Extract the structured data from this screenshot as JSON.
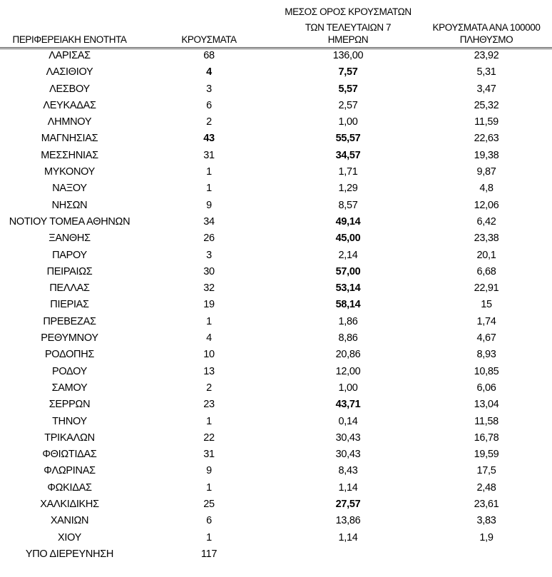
{
  "headers": {
    "region": "ΠΕΡΙΦΕΡΕΙΑΚΗ ΕΝΟΤΗΤΑ",
    "cases": "ΚΡΟΥΣΜΑΤΑ",
    "avg_line1": "ΜΕΣΟΣ ΟΡΟΣ ΚΡΟΥΣΜΑΤΩΝ",
    "avg_line2": "ΤΩΝ ΤΕΛΕΥΤΑΙΩΝ 7",
    "avg_line3": "ΗΜΕΡΩΝ",
    "per100k_line1": "ΚΡΟΥΣΜΑΤΑ ΑΝΑ 100000",
    "per100k_line2": "ΠΛΗΘΥΣΜΟ"
  },
  "rows": [
    {
      "region": "ΛΑΡΙΣΑΣ",
      "cases": "68",
      "avg7": "136,00",
      "per100k": "23,92"
    },
    {
      "region": "ΛΑΣΙΘΙΟΥ",
      "cases": "4",
      "avg7": "7,57",
      "per100k": "5,31"
    },
    {
      "region": "ΛΕΣΒΟΥ",
      "cases": "3",
      "avg7": "5,57",
      "per100k": "3,47"
    },
    {
      "region": "ΛΕΥΚΑΔΑΣ",
      "cases": "6",
      "avg7": "2,57",
      "per100k": "25,32"
    },
    {
      "region": "ΛΗΜΝΟΥ",
      "cases": "2",
      "avg7": "1,00",
      "per100k": "11,59"
    },
    {
      "region": "ΜΑΓΝΗΣΙΑΣ",
      "cases": "43",
      "avg7": "55,57",
      "per100k": "22,63"
    },
    {
      "region": "ΜΕΣΣΗΝΙΑΣ",
      "cases": "31",
      "avg7": "34,57",
      "per100k": "19,38"
    },
    {
      "region": "ΜΥΚΟΝΟΥ",
      "cases": "1",
      "avg7": "1,71",
      "per100k": "9,87"
    },
    {
      "region": "ΝΑΞΟΥ",
      "cases": "1",
      "avg7": "1,29",
      "per100k": "4,8"
    },
    {
      "region": "ΝΗΣΩΝ",
      "cases": "9",
      "avg7": "8,57",
      "per100k": "12,06"
    },
    {
      "region": "ΝΟΤΙΟΥ ΤΟΜΕΑ ΑΘΗΝΩΝ",
      "cases": "34",
      "avg7": "49,14",
      "per100k": "6,42"
    },
    {
      "region": "ΞΑΝΘΗΣ",
      "cases": "26",
      "avg7": "45,00",
      "per100k": "23,38"
    },
    {
      "region": "ΠΑΡΟΥ",
      "cases": "3",
      "avg7": "2,14",
      "per100k": "20,1"
    },
    {
      "region": "ΠΕΙΡΑΙΩΣ",
      "cases": "30",
      "avg7": "57,00",
      "per100k": "6,68"
    },
    {
      "region": "ΠΕΛΛΑΣ",
      "cases": "32",
      "avg7": "53,14",
      "per100k": "22,91"
    },
    {
      "region": "ΠΙΕΡΙΑΣ",
      "cases": "19",
      "avg7": "58,14",
      "per100k": "15"
    },
    {
      "region": "ΠΡΕΒΕΖΑΣ",
      "cases": "1",
      "avg7": "1,86",
      "per100k": "1,74"
    },
    {
      "region": "ΡΕΘΥΜΝΟΥ",
      "cases": "4",
      "avg7": "8,86",
      "per100k": "4,67"
    },
    {
      "region": "ΡΟΔΟΠΗΣ",
      "cases": "10",
      "avg7": "20,86",
      "per100k": "8,93"
    },
    {
      "region": "ΡΟΔΟΥ",
      "cases": "13",
      "avg7": "12,00",
      "per100k": "10,85"
    },
    {
      "region": "ΣΑΜΟΥ",
      "cases": "2",
      "avg7": "1,00",
      "per100k": "6,06"
    },
    {
      "region": "ΣΕΡΡΩΝ",
      "cases": "23",
      "avg7": "43,71",
      "per100k": "13,04"
    },
    {
      "region": "ΤΗΝΟΥ",
      "cases": "1",
      "avg7": "0,14",
      "per100k": "11,58"
    },
    {
      "region": "ΤΡΙΚΑΛΩΝ",
      "cases": "22",
      "avg7": "30,43",
      "per100k": "16,78"
    },
    {
      "region": "ΦΘΙΩΤΙΔΑΣ",
      "cases": "31",
      "avg7": "30,43",
      "per100k": "19,59"
    },
    {
      "region": "ΦΛΩΡΙΝΑΣ",
      "cases": "9",
      "avg7": "8,43",
      "per100k": "17,5"
    },
    {
      "region": "ΦΩΚΙΔΑΣ",
      "cases": "1",
      "avg7": "1,14",
      "per100k": "2,48"
    },
    {
      "region": "ΧΑΛΚΙΔΙΚΗΣ",
      "cases": "25",
      "avg7": "27,57",
      "per100k": "23,61"
    },
    {
      "region": "ΧΑΝΙΩΝ",
      "cases": "6",
      "avg7": "13,86",
      "per100k": "3,83"
    },
    {
      "region": "ΧΙΟΥ",
      "cases": "1",
      "avg7": "1,14",
      "per100k": "1,9"
    },
    {
      "region": "ΥΠΟ ΔΙΕΡΕΥΝΗΣΗ",
      "cases": "117",
      "avg7": "",
      "per100k": ""
    }
  ]
}
